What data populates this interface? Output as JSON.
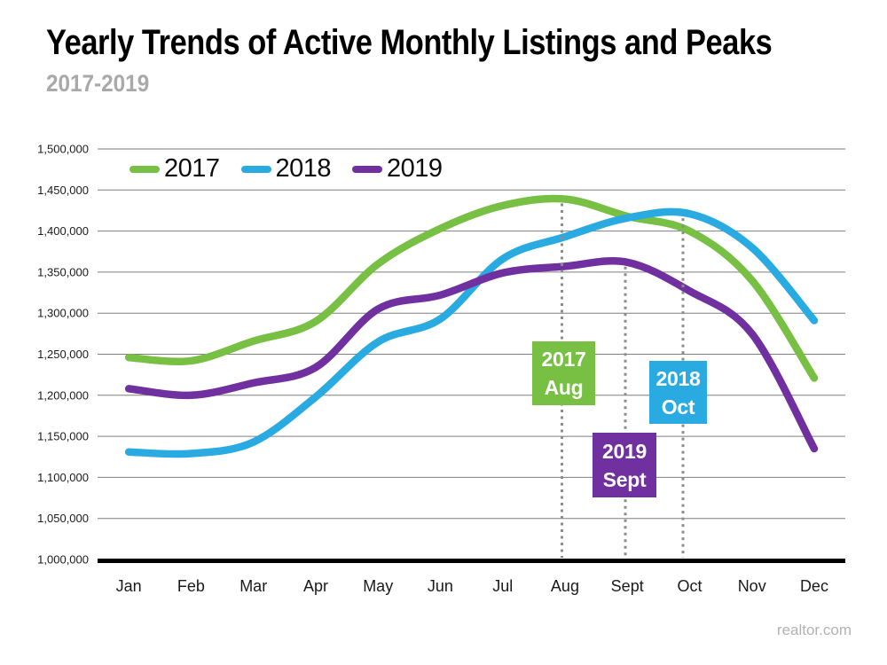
{
  "page": {
    "watermark": "realtor.com"
  },
  "chart_data": {
    "type": "line",
    "title": "Yearly Trends of Active Monthly Listings and Peaks",
    "subtitle": "2017-2019",
    "categories": [
      "Jan",
      "Feb",
      "Mar",
      "Apr",
      "May",
      "Jun",
      "Jul",
      "Aug",
      "Sept",
      "Oct",
      "Nov",
      "Dec"
    ],
    "series": [
      {
        "name": "2017",
        "color": "#77C043",
        "values": [
          1246000,
          1242000,
          1266000,
          1290000,
          1360000,
          1403000,
          1431000,
          1439000,
          1418000,
          1400000,
          1340000,
          1221000
        ]
      },
      {
        "name": "2018",
        "color": "#29ABE2",
        "values": [
          1131000,
          1129000,
          1143000,
          1198000,
          1265000,
          1293000,
          1366000,
          1393000,
          1416000,
          1421000,
          1380000,
          1291000
        ]
      },
      {
        "name": "2019",
        "color": "#7030A0",
        "values": [
          1208000,
          1200000,
          1215000,
          1234000,
          1305000,
          1322000,
          1349000,
          1357000,
          1362000,
          1327000,
          1275000,
          1135000
        ]
      }
    ],
    "ylim": [
      1000000,
      1500000
    ],
    "ytick_step": 50000,
    "grid": true,
    "legend_position": "top-left-inside",
    "annotations": [
      {
        "id": "2017-aug",
        "series": "2017",
        "month": "Aug",
        "label_lines": [
          "2017",
          "Aug"
        ],
        "color": "#77C043"
      },
      {
        "id": "2019-sept",
        "series": "2019",
        "month": "Sept",
        "label_lines": [
          "2019",
          "Sept"
        ],
        "color": "#7030A0"
      },
      {
        "id": "2018-oct",
        "series": "2018",
        "month": "Oct",
        "label_lines": [
          "2018",
          "Oct"
        ],
        "color": "#29ABE2"
      }
    ],
    "colors": {
      "gridline": "#7f7f7f",
      "axis": "#000000",
      "dotted_guide": "#8c8c8c",
      "subtitle_gray": "#a9a9a9",
      "watermark_gray": "#b3b3b3"
    }
  }
}
